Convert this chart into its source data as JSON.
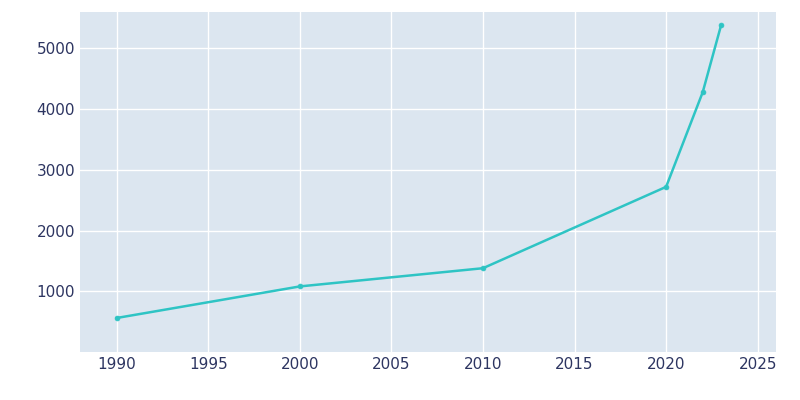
{
  "years": [
    1990,
    2000,
    2010,
    2020,
    2022,
    2023
  ],
  "population": [
    560,
    1080,
    1380,
    2720,
    4280,
    5380
  ],
  "line_color": "#2ec4c4",
  "marker_color": "#2ec4c4",
  "plot_bg_color": "#dce6f0",
  "fig_bg_color": "#ffffff",
  "grid_color": "#ffffff",
  "text_color": "#2d3561",
  "xlim": [
    1988,
    2026
  ],
  "ylim": [
    0,
    5600
  ],
  "xticks": [
    1990,
    1995,
    2000,
    2005,
    2010,
    2015,
    2020,
    2025
  ],
  "yticks": [
    1000,
    2000,
    3000,
    4000,
    5000
  ],
  "figsize": [
    8.0,
    4.0
  ],
  "dpi": 100
}
